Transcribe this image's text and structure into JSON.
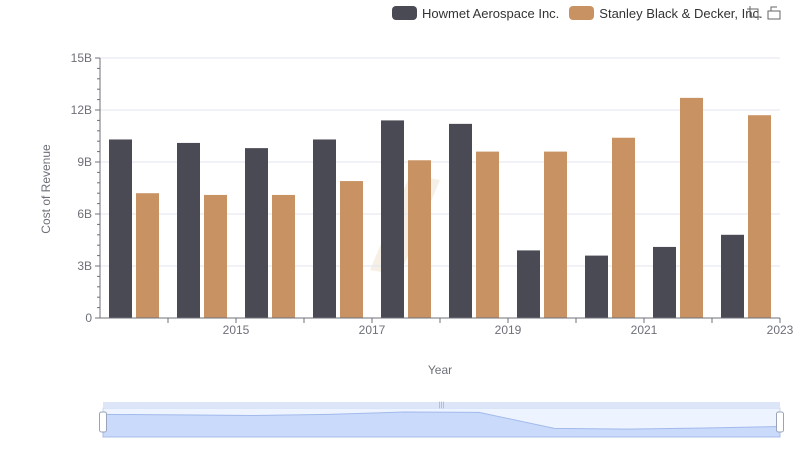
{
  "toolbox": {
    "zoom_icon": "zoom-icon",
    "reset_icon": "zoom-reset-icon"
  },
  "chart_data": {
    "type": "bar",
    "title": "",
    "xlabel": "Year",
    "ylabel": "Cost of Revenue",
    "categories": [
      "2014",
      "2015",
      "2016",
      "2017",
      "2018",
      "2019",
      "2020",
      "2021",
      "2022",
      "2023"
    ],
    "x_tick_labels": [
      "2015",
      "2017",
      "2019",
      "2021",
      "2023"
    ],
    "y_ticks": [
      0,
      3,
      6,
      9,
      12,
      15
    ],
    "y_tick_labels": [
      "0",
      "3B",
      "6B",
      "9B",
      "12B",
      "15B"
    ],
    "ylim": [
      0,
      15
    ],
    "y_unit": "billions",
    "grid": true,
    "legend_position": "top-right",
    "series": [
      {
        "name": "Howmet Aerospace Inc.",
        "color": "#4a4a55",
        "values": [
          10.3,
          10.1,
          9.8,
          10.3,
          11.4,
          11.2,
          3.9,
          3.6,
          4.1,
          4.8
        ]
      },
      {
        "name": "Stanley Black & Decker, Inc.",
        "color": "#c89263",
        "values": [
          7.2,
          7.1,
          7.1,
          7.9,
          9.1,
          9.6,
          9.6,
          10.4,
          12.7,
          11.7
        ]
      }
    ],
    "data_zoom": {
      "start_percent": 0,
      "end_percent": 100
    }
  }
}
